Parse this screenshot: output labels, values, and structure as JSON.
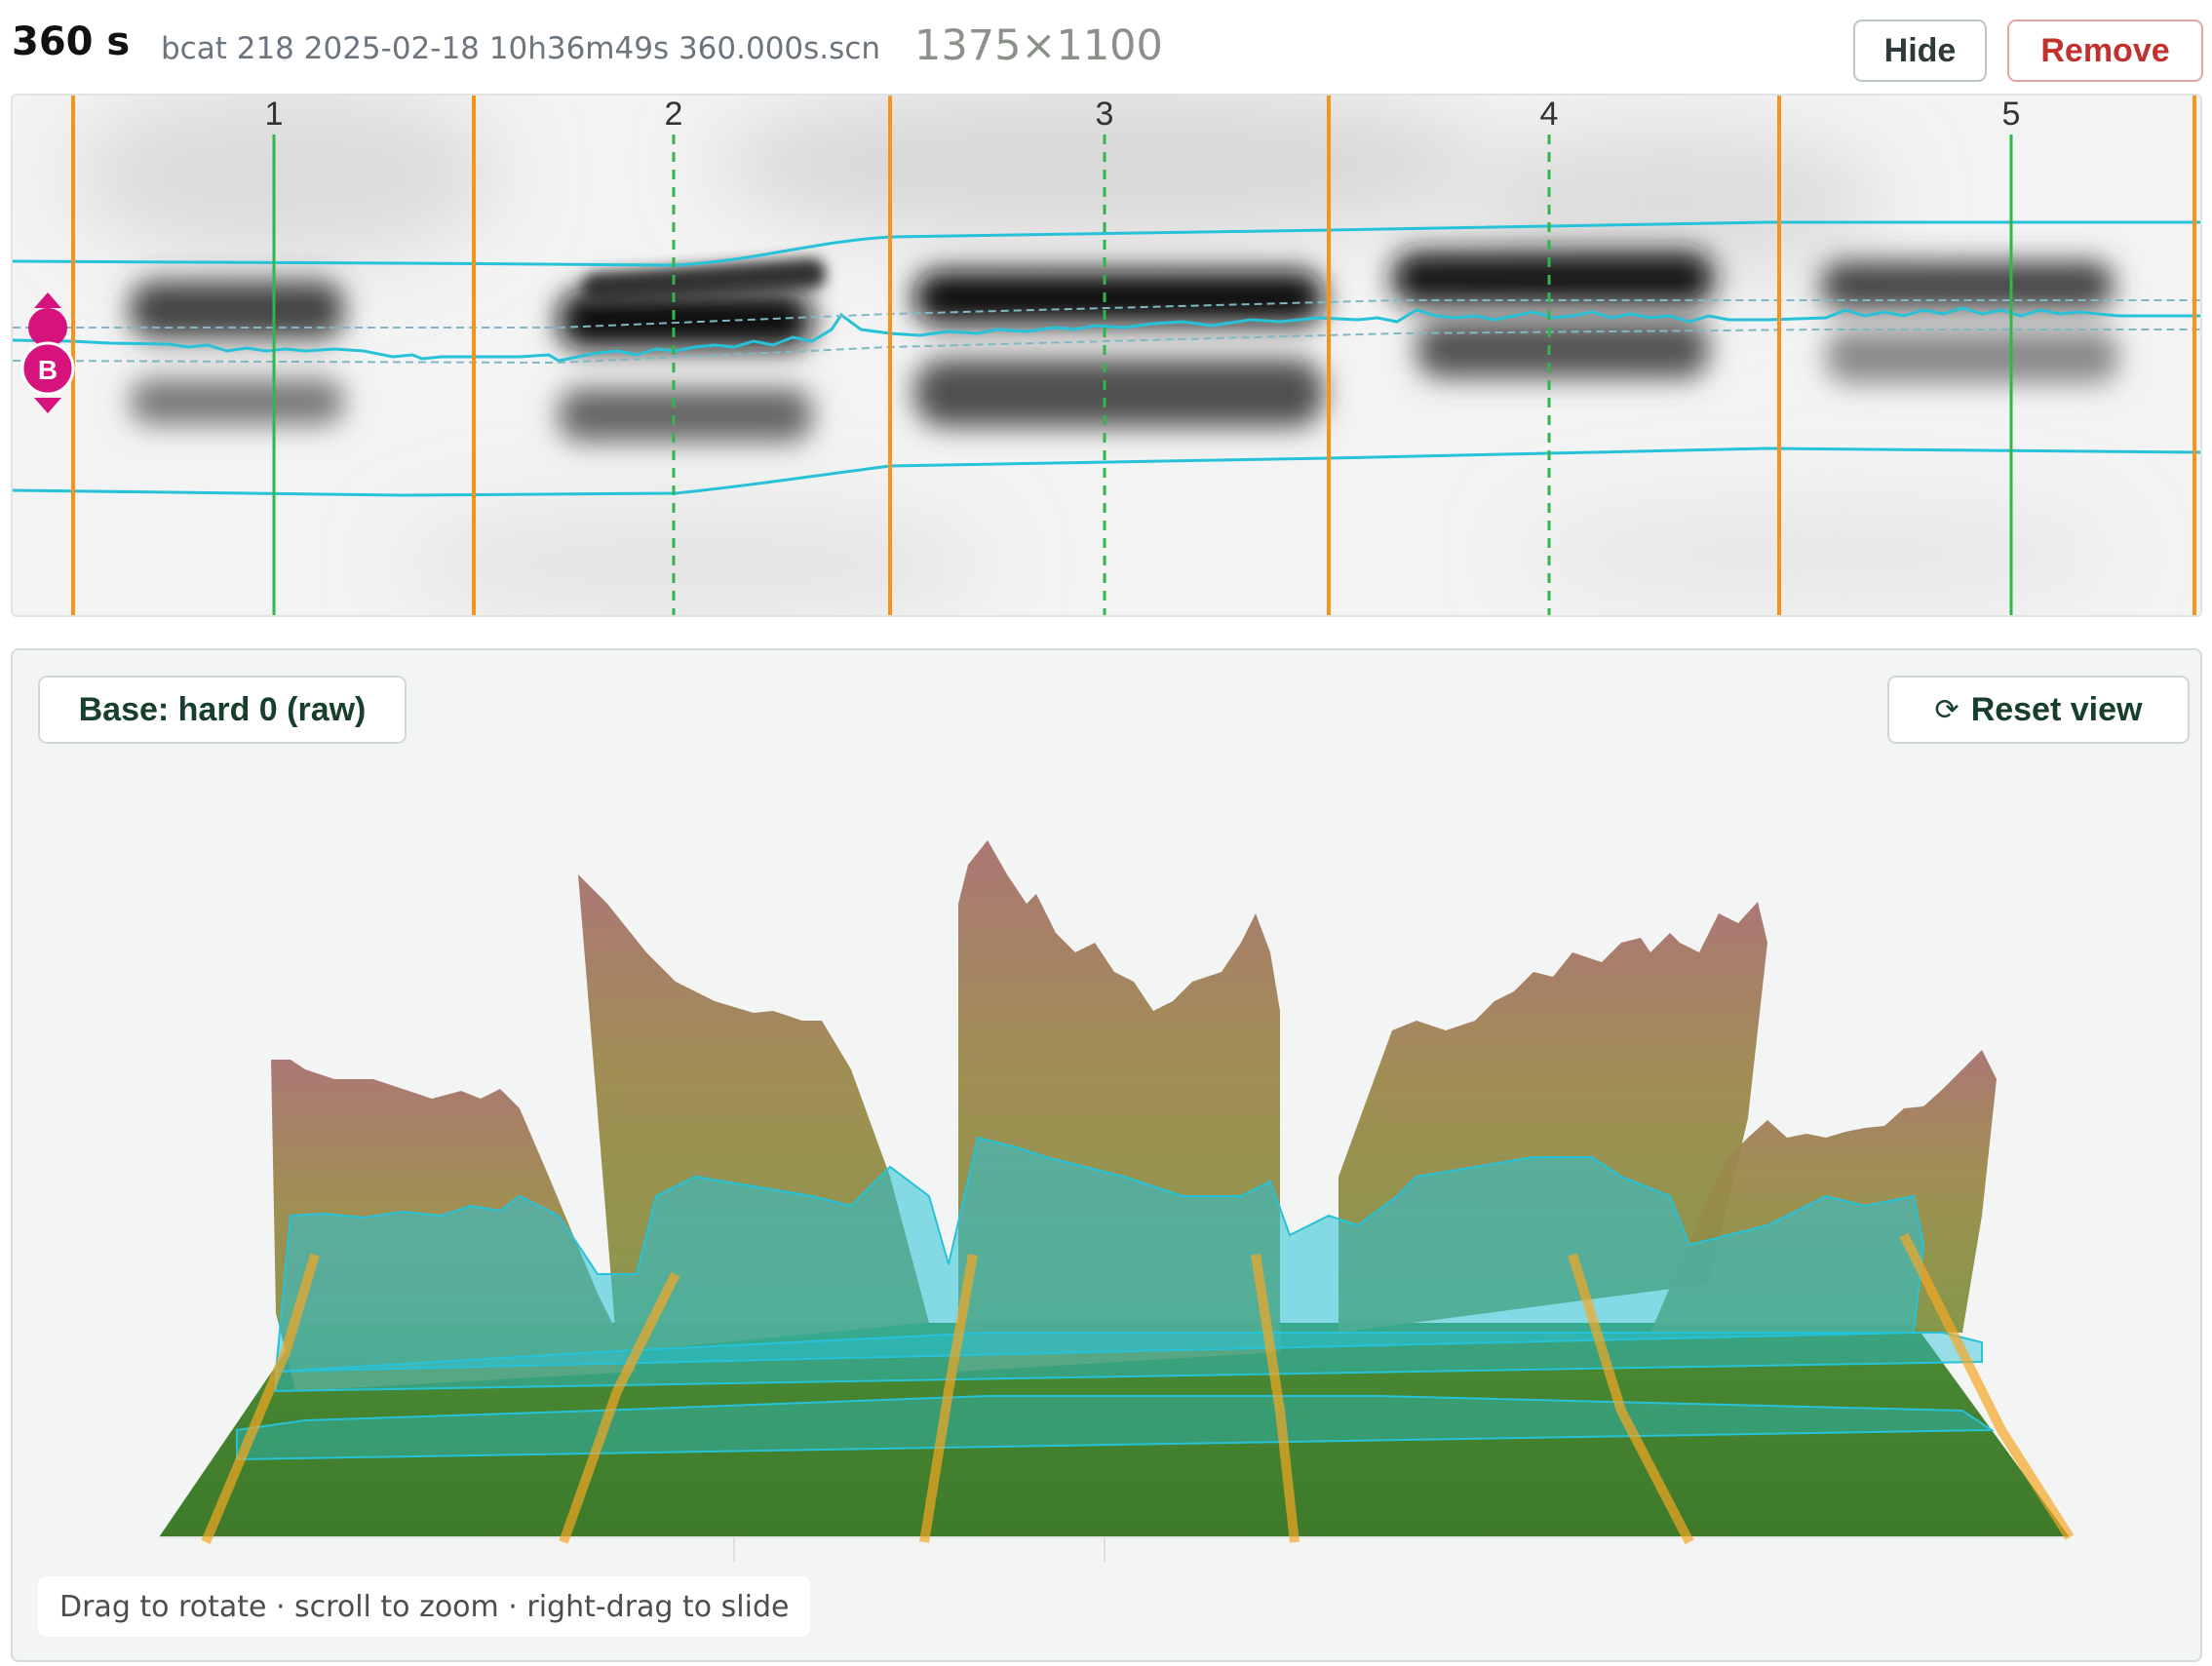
{
  "header": {
    "time_label": "360 s",
    "filename": "bcat 218 2025-02-18 10h36m49s 360.000s.scn",
    "dimensions": "1375×1100",
    "hide_label": "Hide",
    "remove_label": "Remove"
  },
  "gel": {
    "lane_numbers": [
      "1",
      "2",
      "3",
      "4",
      "5"
    ],
    "marker_label": "B",
    "colors": {
      "lane_boundary": "#f5931c",
      "lane_center_selected": "#2fb84a",
      "lane_center": "#2fb84a",
      "band_trace": "#27c2d8",
      "marker": "#d6127d"
    }
  },
  "viewer": {
    "base_label": "Base: hard 0 (raw)",
    "reset_label": "Reset view",
    "reset_icon": "refresh-icon",
    "hint": "Drag to rotate · scroll to zoom · right-drag to slide",
    "colors": {
      "surface_low": "#3f7a2c",
      "surface_high": "#a37a6a",
      "band_overlay": "#27c2d8",
      "lane_edge": "#f5a623"
    }
  }
}
